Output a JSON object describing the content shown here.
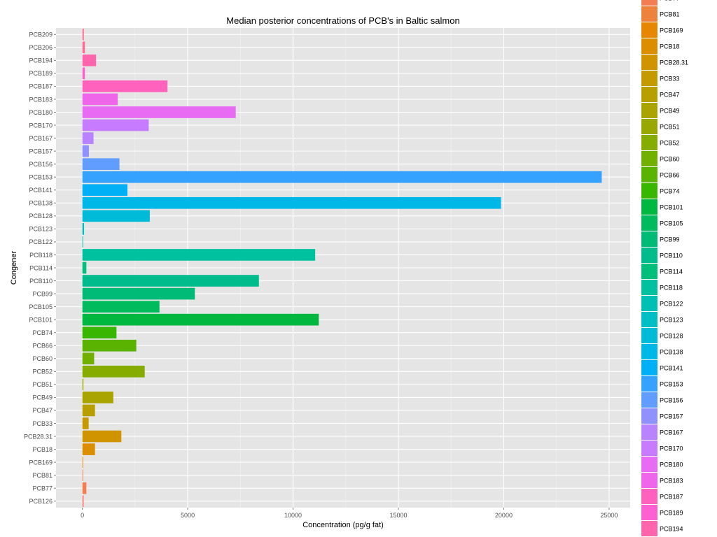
{
  "chart_data": {
    "type": "bar",
    "orientation": "horizontal",
    "title": "Median posterior concentrations of PCB's in Baltic salmon",
    "xlabel": "Concentration (pg/g fat)",
    "ylabel": "Congener",
    "xlim": [
      -1250,
      26000
    ],
    "xticks": [
      0,
      5000,
      10000,
      15000,
      20000,
      25000
    ],
    "grid": true,
    "legend_position": "right",
    "categories": [
      "PCB126",
      "PCB77",
      "PCB81",
      "PCB169",
      "PCB18",
      "PCB28.31",
      "PCB33",
      "PCB47",
      "PCB49",
      "PCB51",
      "PCB52",
      "PCB60",
      "PCB66",
      "PCB74",
      "PCB101",
      "PCB105",
      "PCB99",
      "PCB110",
      "PCB114",
      "PCB118",
      "PCB122",
      "PCB123",
      "PCB128",
      "PCB138",
      "PCB141",
      "PCB153",
      "PCB156",
      "PCB157",
      "PCB167",
      "PCB170",
      "PCB180",
      "PCB183",
      "PCB187",
      "PCB189",
      "PCB194",
      "PCB206",
      "PCB209"
    ],
    "values": [
      60,
      190,
      15,
      20,
      600,
      1850,
      300,
      600,
      1470,
      50,
      2960,
      560,
      2560,
      1620,
      11220,
      3660,
      5340,
      8380,
      190,
      11050,
      20,
      80,
      3200,
      19870,
      2140,
      24650,
      1760,
      310,
      530,
      3150,
      7280,
      1680,
      4040,
      120,
      650,
      120,
      70
    ],
    "colors": [
      "#F8766D",
      "#F27D52",
      "#EC823C",
      "#E58700",
      "#DB8E00",
      "#D09400",
      "#C49A00",
      "#B79F00",
      "#A9A400",
      "#99A800",
      "#87AC00",
      "#72B000",
      "#59B300",
      "#39B600",
      "#00B83F",
      "#00BA5E",
      "#00BB77",
      "#00BC8D",
      "#00BF7D",
      "#00C19F",
      "#00C0B4",
      "#00BFC4",
      "#00BBD7",
      "#00B8E7",
      "#00B0F6",
      "#35A2FF",
      "#619CFF",
      "#8F91FF",
      "#B983FF",
      "#C77CFF",
      "#E76BF3",
      "#F066EA",
      "#FF62BC",
      "#FD61D1",
      "#FF65AC",
      "#FF6A98",
      "#FF6C91"
    ],
    "legend": {
      "partial_top": "PCB77",
      "entries": [
        "PCB81",
        "PCB169",
        "PCB18",
        "PCB28.31",
        "PCB33",
        "PCB47",
        "PCB49",
        "PCB51",
        "PCB52",
        "PCB60",
        "PCB66",
        "PCB74",
        "PCB101",
        "PCB105",
        "PCB99",
        "PCB110",
        "PCB114",
        "PCB118",
        "PCB122",
        "PCB123",
        "PCB128",
        "PCB138",
        "PCB141",
        "PCB153",
        "PCB156",
        "PCB157",
        "PCB167",
        "PCB170",
        "PCB180",
        "PCB183",
        "PCB187",
        "PCB189",
        "PCB194"
      ]
    }
  }
}
